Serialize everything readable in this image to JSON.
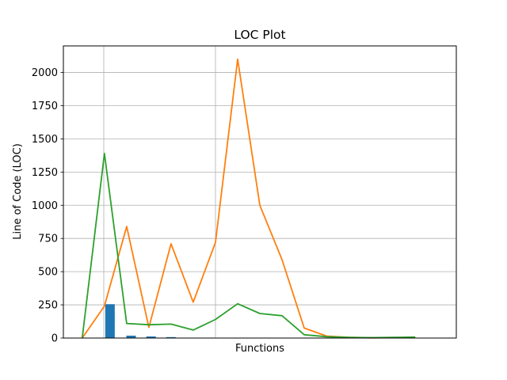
{
  "chart_data": {
    "type": "line",
    "title": "LOC Plot",
    "xlabel": "Functions",
    "ylabel": "Line of Code (LOC)",
    "ylim": [
      0,
      2200
    ],
    "yticks": [
      0,
      250,
      500,
      750,
      1000,
      1250,
      1500,
      1750,
      2000
    ],
    "grid": "y-major plus two vertical lines",
    "legend": "none",
    "x": [
      0,
      1,
      2,
      3,
      4,
      5,
      6,
      7,
      8,
      9,
      10,
      11,
      12,
      13,
      14,
      15
    ],
    "bars": {
      "color": "#1f77b4",
      "points": [
        {
          "x": 1.25,
          "value": 255
        },
        {
          "x": 2.2,
          "value": 18
        },
        {
          "x": 3.1,
          "value": 12
        },
        {
          "x": 4.0,
          "value": 7
        }
      ]
    },
    "series": [
      {
        "color": "#ff7f0e",
        "values": [
          0,
          240,
          840,
          80,
          710,
          270,
          720,
          2100,
          1000,
          590,
          75,
          15,
          5,
          2,
          3,
          5
        ]
      },
      {
        "color": "#2ca02c",
        "values": [
          0,
          1390,
          110,
          100,
          105,
          60,
          140,
          258,
          185,
          168,
          25,
          10,
          5,
          3,
          5,
          7
        ]
      }
    ]
  }
}
